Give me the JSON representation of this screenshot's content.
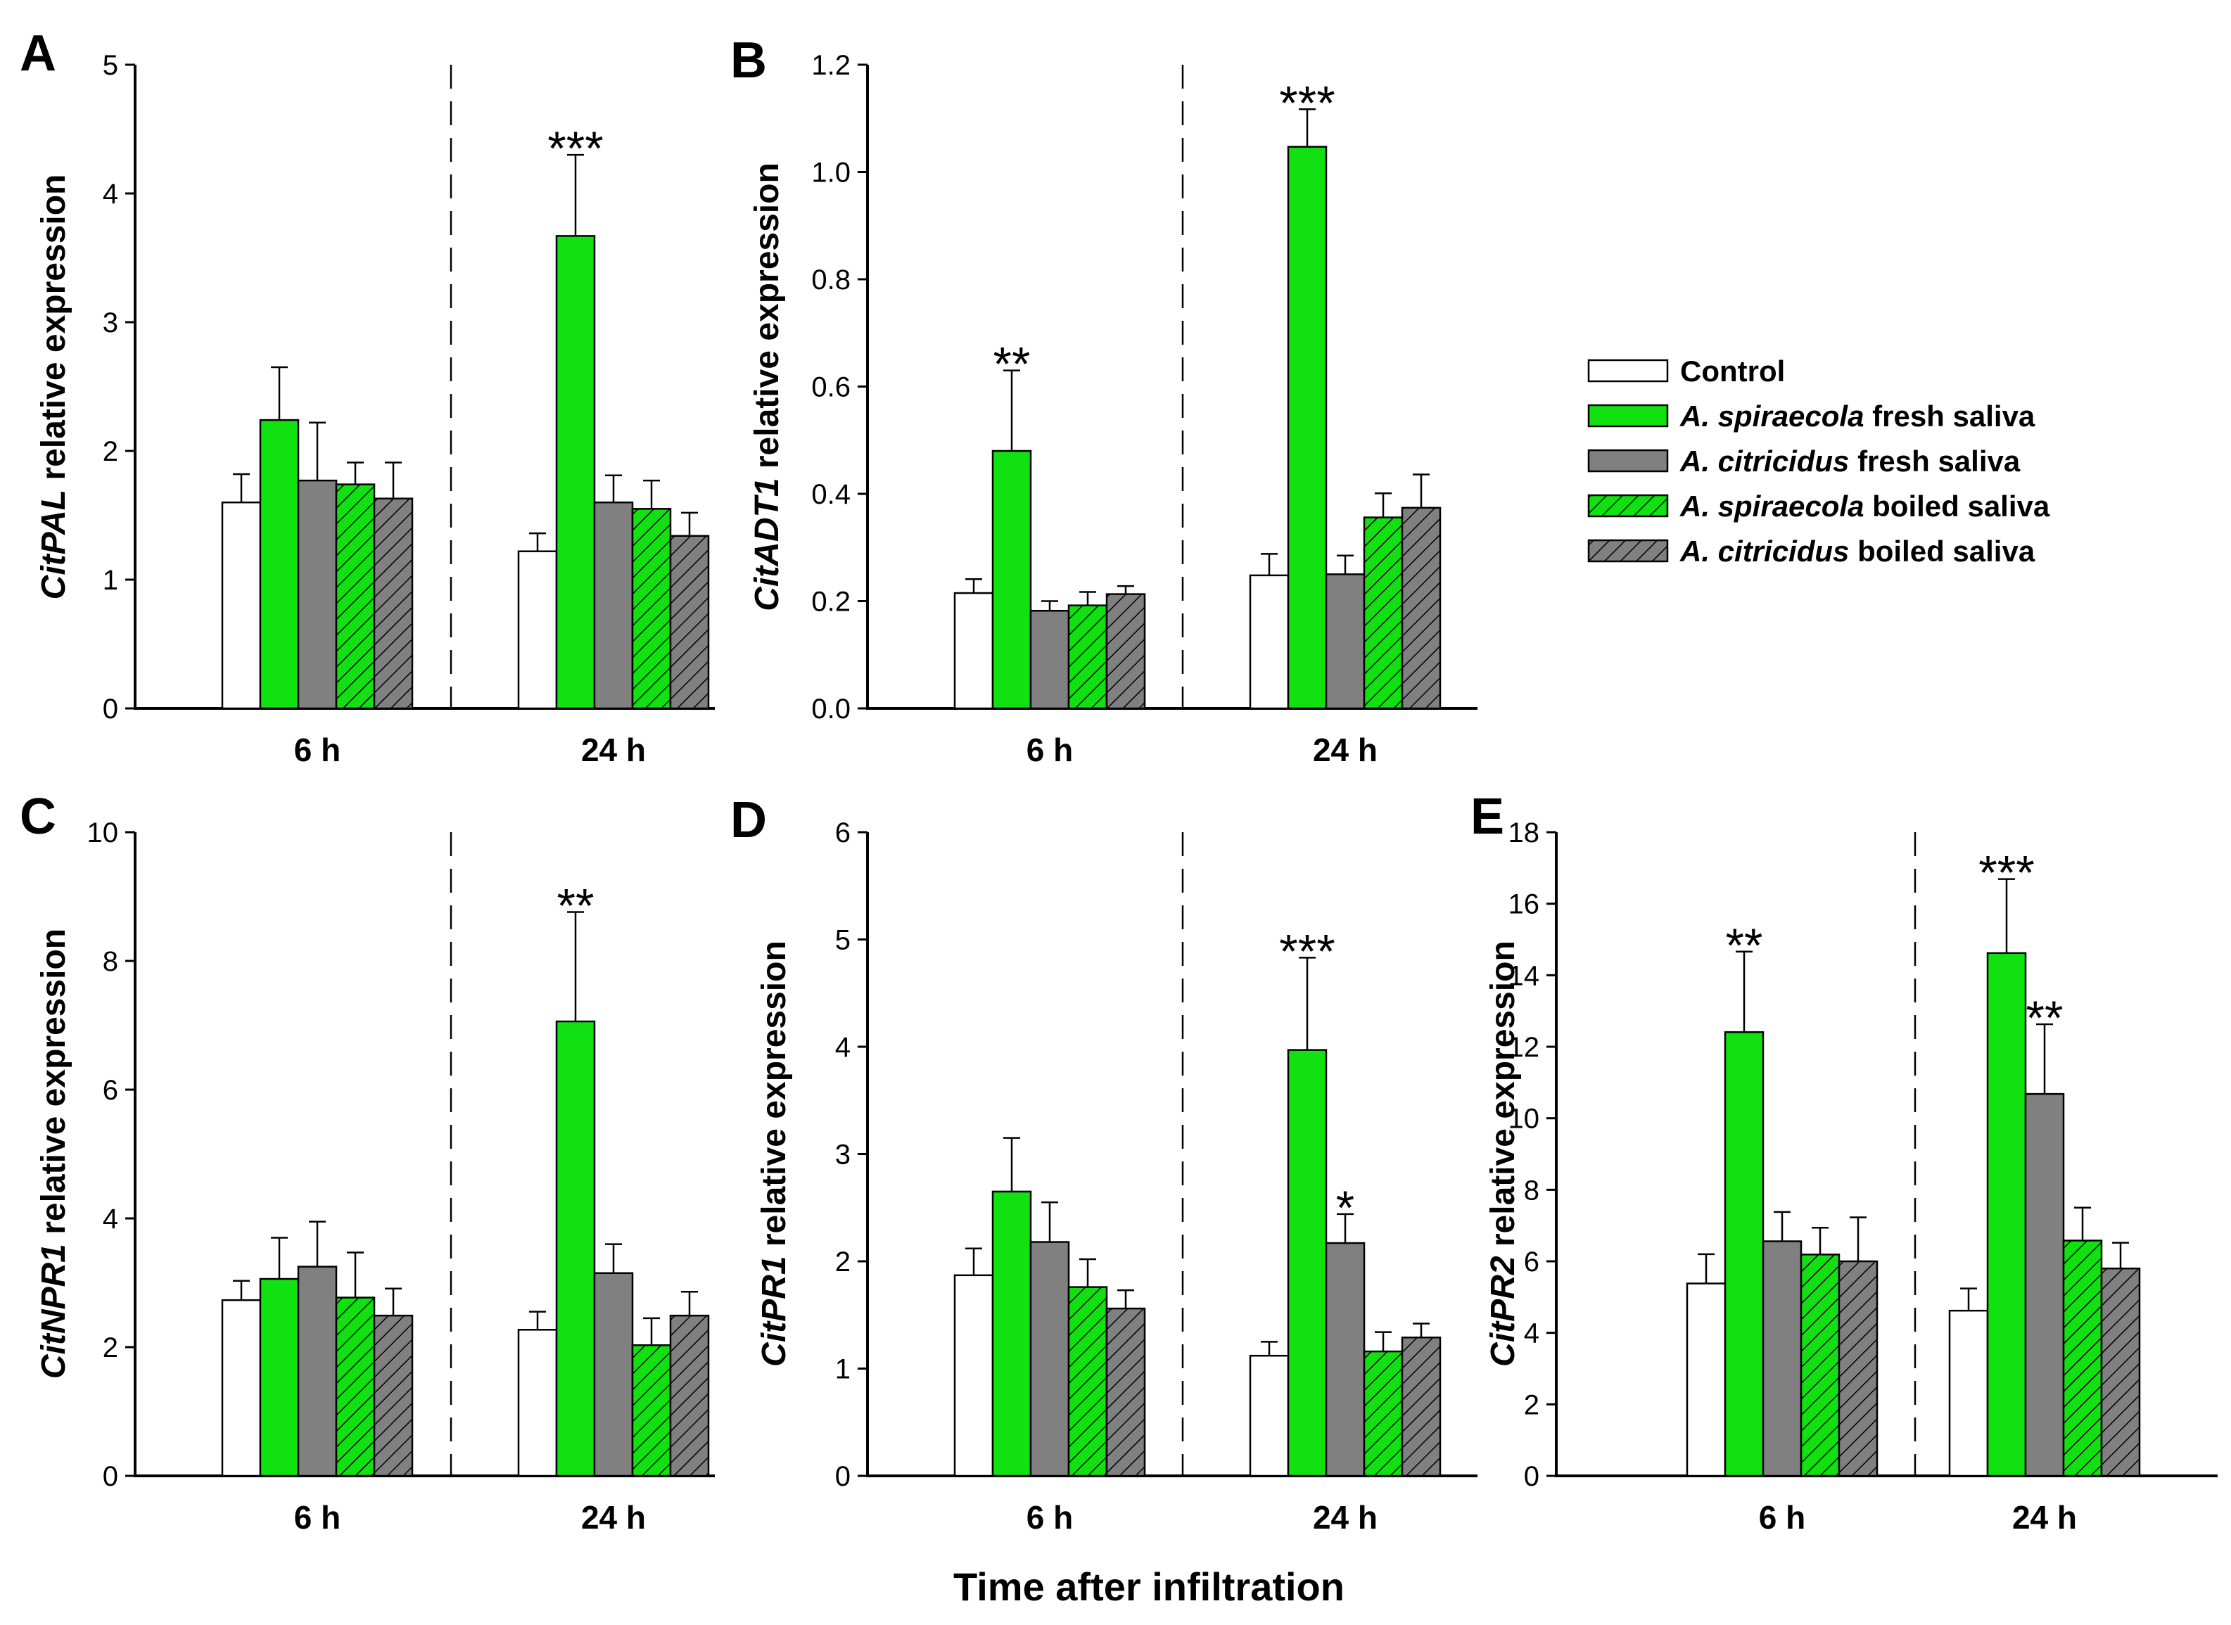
{
  "figure": {
    "x_title": "Time after infiltration"
  },
  "colors": {
    "control": "#ffffff",
    "spiraecola": "#11e011",
    "citricidus": "#808080",
    "stroke": "#000000"
  },
  "legend": {
    "items": [
      {
        "series": "control",
        "pattern": "solid",
        "italic": "",
        "rest": "Control"
      },
      {
        "series": "spiraecola",
        "pattern": "solid",
        "italic": "A. spiraecola",
        "rest": "  fresh saliva"
      },
      {
        "series": "citricidus",
        "pattern": "solid",
        "italic": "A. citricidus",
        "rest": " fresh saliva"
      },
      {
        "series": "spiraecola",
        "pattern": "hatch",
        "italic": "A. spiraecola",
        "rest": " boiled saliva"
      },
      {
        "series": "citricidus",
        "pattern": "hatch",
        "italic": "A. citricidus",
        "rest": " boiled saliva"
      }
    ]
  },
  "chart_data": [
    {
      "type": "bar",
      "panel": "A",
      "ylabel_gene": "CitPAL",
      "ylabel_rest": " relative expression",
      "ylim": [
        0,
        5
      ],
      "yticks": [
        "0",
        "1",
        "2",
        "3",
        "4",
        "5"
      ],
      "categories": [
        "6 h",
        "24 h"
      ],
      "series": [
        {
          "name": "Control",
          "values": [
            1.6,
            1.22
          ],
          "errors": [
            0.22,
            0.14
          ]
        },
        {
          "name": "A. spiraecola fresh saliva",
          "values": [
            2.24,
            3.67
          ],
          "errors": [
            0.41,
            0.63
          ]
        },
        {
          "name": "A. citricidus fresh saliva",
          "values": [
            1.77,
            1.6
          ],
          "errors": [
            0.45,
            0.21
          ]
        },
        {
          "name": "A. spiraecola boiled saliva",
          "values": [
            1.74,
            1.55
          ],
          "errors": [
            0.17,
            0.22
          ]
        },
        {
          "name": "A. citricidus boiled saliva",
          "values": [
            1.63,
            1.34
          ],
          "errors": [
            0.28,
            0.18
          ]
        }
      ],
      "annotations": [
        {
          "category": 1,
          "series": 1,
          "text": "***"
        }
      ]
    },
    {
      "type": "bar",
      "panel": "B",
      "ylabel_gene": "CitADT1",
      "ylabel_rest": " relative expression",
      "ylim": [
        0,
        1.2
      ],
      "yticks": [
        "0.0",
        "0.2",
        "0.4",
        "0.6",
        "0.8",
        "1.0",
        "1.2"
      ],
      "categories": [
        "6 h",
        "24 h"
      ],
      "series": [
        {
          "name": "Control",
          "values": [
            0.215,
            0.248
          ],
          "errors": [
            0.026,
            0.04
          ]
        },
        {
          "name": "A. spiraecola fresh saliva",
          "values": [
            0.48,
            1.047
          ],
          "errors": [
            0.15,
            0.07
          ]
        },
        {
          "name": "A. citricidus fresh saliva",
          "values": [
            0.182,
            0.25
          ],
          "errors": [
            0.018,
            0.035
          ]
        },
        {
          "name": "A. spiraecola boiled saliva",
          "values": [
            0.192,
            0.356
          ],
          "errors": [
            0.025,
            0.045
          ]
        },
        {
          "name": "A. citricidus boiled saliva",
          "values": [
            0.213,
            0.374
          ],
          "errors": [
            0.015,
            0.062
          ]
        }
      ],
      "annotations": [
        {
          "category": 0,
          "series": 1,
          "text": "**"
        },
        {
          "category": 1,
          "series": 1,
          "text": "***"
        }
      ]
    },
    {
      "type": "bar",
      "panel": "C",
      "ylabel_gene": "CitNPR1",
      "ylabel_rest": " relative expression",
      "ylim": [
        0,
        10
      ],
      "yticks": [
        "0",
        "2",
        "4",
        "6",
        "8",
        "10"
      ],
      "categories": [
        "6 h",
        "24 h"
      ],
      "series": [
        {
          "name": "Control",
          "values": [
            2.73,
            2.27
          ],
          "errors": [
            0.3,
            0.28
          ]
        },
        {
          "name": "A. spiraecola fresh saliva",
          "values": [
            3.06,
            7.06
          ],
          "errors": [
            0.64,
            1.7
          ]
        },
        {
          "name": "A. citricidus fresh saliva",
          "values": [
            3.25,
            3.15
          ],
          "errors": [
            0.7,
            0.45
          ]
        },
        {
          "name": "A. spiraecola boiled saliva",
          "values": [
            2.77,
            2.03
          ],
          "errors": [
            0.7,
            0.42
          ]
        },
        {
          "name": "A. citricidus boiled saliva",
          "values": [
            2.49,
            2.49
          ],
          "errors": [
            0.42,
            0.37
          ]
        }
      ],
      "annotations": [
        {
          "category": 1,
          "series": 1,
          "text": "**"
        }
      ]
    },
    {
      "type": "bar",
      "panel": "D",
      "ylabel_gene": "CitPR1",
      "ylabel_rest": " relative expression",
      "ylim": [
        0,
        6
      ],
      "yticks": [
        "0",
        "1",
        "2",
        "3",
        "4",
        "5",
        "6"
      ],
      "categories": [
        "6 h",
        "24 h"
      ],
      "series": [
        {
          "name": "Control",
          "values": [
            1.87,
            1.12
          ],
          "errors": [
            0.25,
            0.13
          ]
        },
        {
          "name": "A. spiraecola fresh saliva",
          "values": [
            2.65,
            3.97
          ],
          "errors": [
            0.5,
            0.86
          ]
        },
        {
          "name": "A. citricidus fresh saliva",
          "values": [
            2.18,
            2.17
          ],
          "errors": [
            0.37,
            0.27
          ]
        },
        {
          "name": "A. spiraecola boiled saliva",
          "values": [
            1.76,
            1.16
          ],
          "errors": [
            0.26,
            0.18
          ]
        },
        {
          "name": "A. citricidus boiled saliva",
          "values": [
            1.56,
            1.29
          ],
          "errors": [
            0.17,
            0.13
          ]
        }
      ],
      "annotations": [
        {
          "category": 1,
          "series": 1,
          "text": "***"
        },
        {
          "category": 1,
          "series": 2,
          "text": "*"
        }
      ]
    },
    {
      "type": "bar",
      "panel": "E",
      "ylabel_gene": "CitPR2",
      "ylabel_rest": " relative expression",
      "ylim": [
        0,
        18
      ],
      "yticks": [
        "0",
        "2",
        "4",
        "6",
        "8",
        "10",
        "12",
        "14",
        "16",
        "18"
      ],
      "categories": [
        "6 h",
        "24 h"
      ],
      "series": [
        {
          "name": "Control",
          "values": [
            5.38,
            4.62
          ],
          "errors": [
            0.82,
            0.62
          ]
        },
        {
          "name": "A. spiraecola fresh saliva",
          "values": [
            12.41,
            14.62
          ],
          "errors": [
            2.25,
            2.07
          ]
        },
        {
          "name": "A. citricidus fresh saliva",
          "values": [
            6.56,
            10.68
          ],
          "errors": [
            0.82,
            1.95
          ]
        },
        {
          "name": "A. spiraecola boiled saliva",
          "values": [
            6.19,
            6.58
          ],
          "errors": [
            0.75,
            0.92
          ]
        },
        {
          "name": "A. citricidus boiled saliva",
          "values": [
            6.0,
            5.8
          ],
          "errors": [
            1.23,
            0.72
          ]
        }
      ],
      "annotations": [
        {
          "category": 0,
          "series": 1,
          "text": "**"
        },
        {
          "category": 1,
          "series": 1,
          "text": "***"
        },
        {
          "category": 1,
          "series": 2,
          "text": "**"
        }
      ]
    }
  ]
}
